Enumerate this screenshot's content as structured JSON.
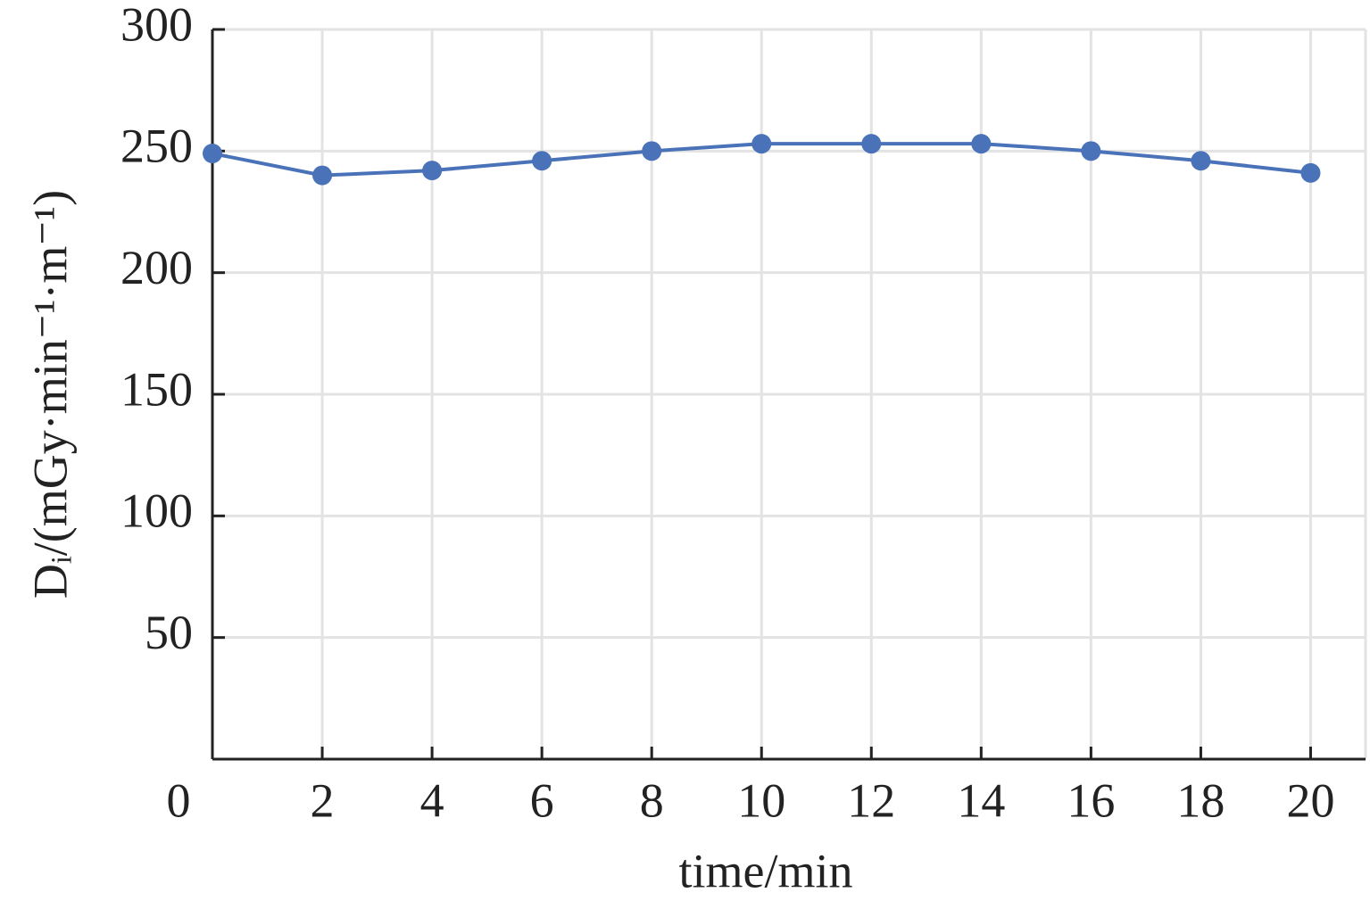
{
  "chart_data": {
    "type": "line",
    "x_label": "time/min",
    "y_label": "Dᵢ/(mGy·min⁻¹·m⁻¹)",
    "x": [
      0,
      2,
      4,
      6,
      8,
      10,
      12,
      14,
      16,
      18,
      20
    ],
    "series": [
      {
        "name": "Di",
        "color": "#4a72b8",
        "values": [
          249,
          240,
          242,
          246,
          250,
          253,
          253,
          253,
          250,
          246,
          241
        ]
      }
    ],
    "xlim": [
      0,
      21
    ],
    "xticks": [
      0,
      2,
      4,
      6,
      8,
      10,
      12,
      14,
      16,
      18,
      20
    ],
    "ylim": [
      0,
      300
    ],
    "yticks": [
      50,
      100,
      150,
      200,
      250,
      300
    ],
    "grid": true
  }
}
